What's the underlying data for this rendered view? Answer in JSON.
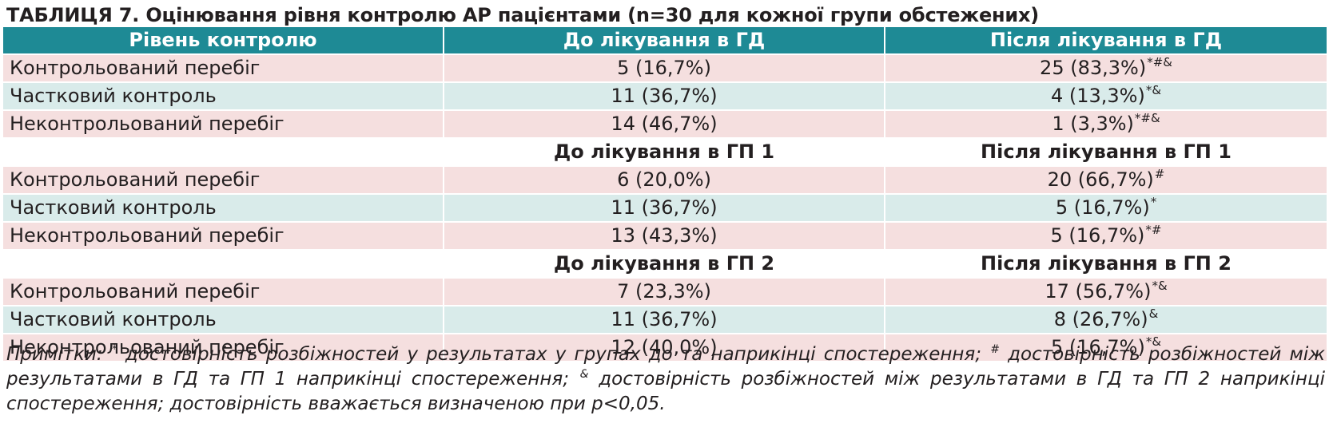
{
  "title": "ТАБЛИЦЯ 7. Оцінювання рівня контролю АР пацієнтами (n=30 для кожної групи обстежених)",
  "header": {
    "col1": "Рівень контролю",
    "col2": "До лікування в ГД",
    "col3": "Після лікування в ГД"
  },
  "groups": [
    {
      "subheader": null,
      "rows": [
        {
          "label": "Контрольований перебіг",
          "before": "5 (16,7%)",
          "after": "25 (83,3%)",
          "after_sup": "*#&"
        },
        {
          "label": "Частковий контроль",
          "before": "11 (36,7%)",
          "after": "4 (13,3%)",
          "after_sup": "*&"
        },
        {
          "label": "Неконтрольований перебіг",
          "before": "14 (46,7%)",
          "after": "1 (3,3%)",
          "after_sup": "*#&"
        }
      ]
    },
    {
      "subheader": {
        "before": "До лікування в ГП 1",
        "after": "Після лікування в ГП 1"
      },
      "rows": [
        {
          "label": "Контрольований перебіг",
          "before": "6 (20,0%)",
          "after": "20 (66,7%)",
          "after_sup": "#"
        },
        {
          "label": "Частковий контроль",
          "before": "11 (36,7%)",
          "after": "5 (16,7%)",
          "after_sup": "*"
        },
        {
          "label": "Неконтрольований перебіг",
          "before": "13 (43,3%)",
          "after": "5 (16,7%)",
          "after_sup": "*#"
        }
      ]
    },
    {
      "subheader": {
        "before": "До лікування в ГП 2",
        "after": "Після лікування в ГП 2"
      },
      "rows": [
        {
          "label": "Контрольований перебіг",
          "before": "7 (23,3%)",
          "after": "17 (56,7%)",
          "after_sup": "*&"
        },
        {
          "label": "Частковий контроль",
          "before": "11 (36,7%)",
          "after": "8 (26,7%)",
          "after_sup": "&"
        },
        {
          "label": "Неконтрольований перебіг",
          "before": "12 (40,0%)",
          "after": "5 (16,7%)",
          "after_sup": "*&"
        }
      ]
    }
  ],
  "notes": {
    "prefix": "Примітки: ",
    "sym1": "*",
    "text1": " достовірність розбіжностей у результатах у групах до та наприкінці спостереження; ",
    "sym2": "#",
    "text2": " достовірність розбіжностей між результатами в ГД та ГП 1 наприкінці спостереження; ",
    "sym3": "&",
    "text3": " достовірність розбіжностей між результатами в ГД та ГП 2 наприкінці спостереження; достовірність вважається визначеною при p<0,05."
  },
  "colors": {
    "header_bg": "#1e8a95",
    "row_pink": "#f5dfdf",
    "row_teal": "#d9ebea"
  }
}
